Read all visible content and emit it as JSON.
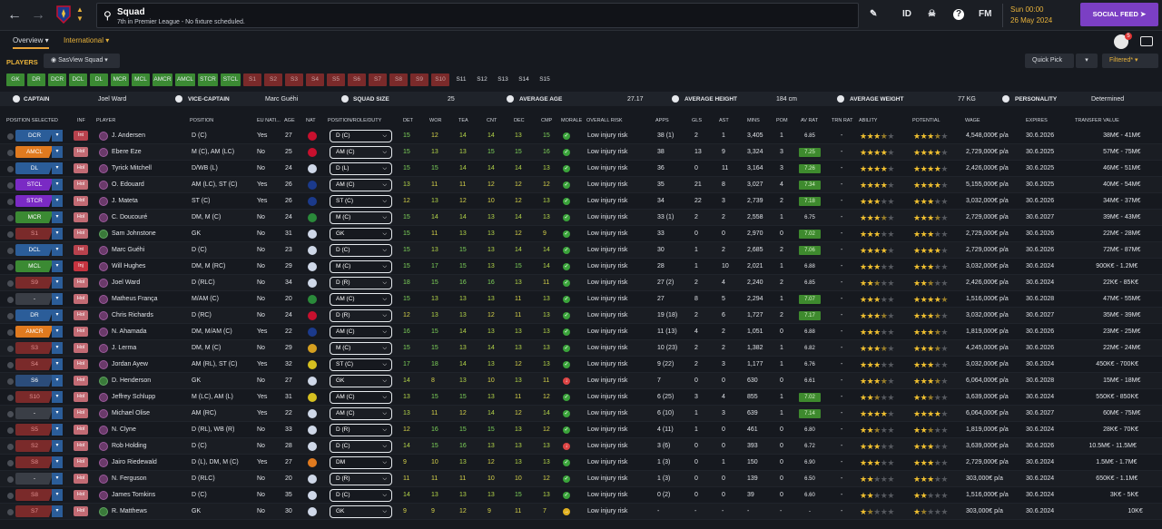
{
  "header": {
    "title": "Squad",
    "subtitle": "7th in Premier League - No fixture scheduled.",
    "id_label": "ID",
    "fm_label": "FM",
    "time": "Sun 00:00",
    "date": "26 May 2024",
    "social_feed": "SOCIAL FEED"
  },
  "tabs": {
    "overview": "Overview",
    "international": "International"
  },
  "notifications": {
    "count": "5"
  },
  "players_bar": {
    "label": "PLAYERS",
    "view": "SasView Squad",
    "quick_pick": "Quick Pick",
    "filtered": "Filtered*"
  },
  "position_filters": [
    "GK",
    "DR",
    "DCR",
    "DCL",
    "DL",
    "MCR",
    "MCL",
    "AMCR",
    "AMCL",
    "STCR",
    "STCL",
    "S1",
    "S2",
    "S3",
    "S4",
    "S5",
    "S6",
    "S7",
    "S8",
    "S9",
    "S10",
    "S11",
    "S12",
    "S13",
    "S14",
    "S15"
  ],
  "position_filter_state": [
    "on",
    "on",
    "on",
    "on",
    "on",
    "on",
    "on",
    "on",
    "on",
    "on",
    "on",
    "sub",
    "sub",
    "sub",
    "sub",
    "sub",
    "sub",
    "sub",
    "sub",
    "sub",
    "sub",
    "off",
    "off",
    "off",
    "off",
    "off"
  ],
  "info": {
    "captain_label": "CAPTAIN",
    "captain": "Joel Ward",
    "vice_label": "VICE-CAPTAIN",
    "vice": "Marc Guéhi",
    "size_label": "SQUAD SIZE",
    "size": "25",
    "age_label": "AVERAGE AGE",
    "age": "27.17",
    "height_label": "AVERAGE HEIGHT",
    "height": "184 cm",
    "weight_label": "AVERAGE WEIGHT",
    "weight": "77 KG",
    "personality_label": "PERSONALITY",
    "personality": "Determined"
  },
  "columns": {
    "pos_sel": "POSITION SELECTED",
    "inf": "INF",
    "player": "PLAYER",
    "position": "POSITION",
    "eu": "EU NATI...",
    "age": "AGE",
    "nat": "NAT",
    "role": "POSITION/ROLE/DUTY",
    "det": "DET",
    "wor": "WOR",
    "tea": "TEA",
    "cnt": "CNT",
    "dec": "DEC",
    "cmp": "CMP",
    "morale": "MORALE",
    "risk": "OVERALL RISK",
    "apps": "APPS",
    "gls": "GLS",
    "ast": "AST",
    "mins": "MINS",
    "pom": "POM",
    "avrat": "AV RAT",
    "trnrat": "TRN RAT",
    "ability": "ABILITY",
    "potential": "POTENTIAL",
    "wage": "WAGE",
    "expires": "EXPIRES",
    "transfer": "TRANSFER VALUE"
  },
  "colors": {
    "accent": "#e8b23a",
    "social": "#7b3fc4",
    "green": "#3b8a33"
  },
  "rows": [
    {
      "sel": "DCR",
      "selc": "#2b5d99",
      "inf": "Int",
      "infc": "int",
      "name": "J. Andersen",
      "pos": "D (C)",
      "eu": "Yes",
      "age": "27",
      "nat": "#c8102e",
      "role": "D (C)",
      "det": "15",
      "wor": "12",
      "tea": "14",
      "cnt": "14",
      "dec": "13",
      "cmp": "15",
      "morale": "good",
      "risk": "Low injury risk",
      "apps": "38 (1)",
      "gls": "2",
      "ast": "1",
      "mins": "3,405",
      "pom": "1",
      "avrat": "6.85",
      "avg": false,
      "trn": "-",
      "ab": 3.5,
      "pot": 3.5,
      "wage": "4,548,000€ p/a",
      "exp": "30.6.2026",
      "tv": "38M€ - 41M€"
    },
    {
      "sel": "AMCL",
      "selc": "#e07a1f",
      "inf": "Hol",
      "infc": "hol",
      "name": "Ebere Eze",
      "pos": "M (C), AM (LC)",
      "eu": "No",
      "age": "25",
      "nat": "#c8102e",
      "role": "AM (C)",
      "det": "15",
      "wor": "13",
      "tea": "13",
      "cnt": "15",
      "dec": "15",
      "cmp": "16",
      "morale": "good",
      "risk": "Low injury risk",
      "apps": "38",
      "gls": "13",
      "ast": "9",
      "mins": "3,324",
      "pom": "3",
      "avrat": "7.25",
      "avg": true,
      "trn": "-",
      "ab": 4,
      "pot": 4,
      "wage": "2,729,000€ p/a",
      "exp": "30.6.2025",
      "tv": "57M€ - 75M€"
    },
    {
      "sel": "DL",
      "selc": "#2b5d99",
      "inf": "Hol",
      "infc": "hol",
      "name": "Tyrick Mitchell",
      "pos": "D/WB (L)",
      "eu": "No",
      "age": "24",
      "nat": "#cfd8e8",
      "role": "D (L)",
      "det": "15",
      "wor": "15",
      "tea": "14",
      "cnt": "14",
      "dec": "14",
      "cmp": "13",
      "morale": "good",
      "risk": "Low injury risk",
      "apps": "36",
      "gls": "0",
      "ast": "11",
      "mins": "3,164",
      "pom": "3",
      "avrat": "7.26",
      "avg": true,
      "trn": "-",
      "ab": 4,
      "pot": 4,
      "wage": "2,426,000€ p/a",
      "exp": "30.6.2025",
      "tv": "46M€ - 51M€"
    },
    {
      "sel": "STCL",
      "selc": "#7a2ac4",
      "inf": "Hol",
      "infc": "hol",
      "name": "O. Edouard",
      "pos": "AM (LC), ST (C)",
      "eu": "Yes",
      "age": "26",
      "nat": "#1b3a8c",
      "role": "AM (C)",
      "det": "13",
      "wor": "11",
      "tea": "11",
      "cnt": "12",
      "dec": "12",
      "cmp": "12",
      "morale": "good",
      "risk": "Low injury risk",
      "apps": "35",
      "gls": "21",
      "ast": "8",
      "mins": "3,027",
      "pom": "4",
      "avrat": "7.34",
      "avg": true,
      "trn": "-",
      "ab": 4,
      "pot": 4,
      "wage": "5,155,000€ p/a",
      "exp": "30.6.2025",
      "tv": "40M€ - 54M€"
    },
    {
      "sel": "STCR",
      "selc": "#7a2ac4",
      "inf": "Hol",
      "infc": "hol",
      "name": "J. Mateta",
      "pos": "ST (C)",
      "eu": "Yes",
      "age": "26",
      "nat": "#1b3a8c",
      "role": "ST (C)",
      "det": "12",
      "wor": "13",
      "tea": "12",
      "cnt": "10",
      "dec": "12",
      "cmp": "13",
      "morale": "good",
      "risk": "Low injury risk",
      "apps": "34",
      "gls": "22",
      "ast": "3",
      "mins": "2,739",
      "pom": "2",
      "avrat": "7.18",
      "avg": true,
      "trn": "-",
      "ab": 3,
      "pot": 3,
      "wage": "3,032,000€ p/a",
      "exp": "30.6.2026",
      "tv": "34M€ - 37M€"
    },
    {
      "sel": "MCR",
      "selc": "#3b8a33",
      "inf": "Hol",
      "infc": "hol",
      "name": "C. Doucouré",
      "pos": "DM, M (C)",
      "eu": "No",
      "age": "24",
      "nat": "#2a8a3a",
      "role": "M (C)",
      "det": "15",
      "wor": "14",
      "tea": "14",
      "cnt": "13",
      "dec": "14",
      "cmp": "13",
      "morale": "good",
      "risk": "Low injury risk",
      "apps": "33 (1)",
      "gls": "2",
      "ast": "2",
      "mins": "2,558",
      "pom": "1",
      "avrat": "6.75",
      "avg": false,
      "trn": "-",
      "ab": 3.5,
      "pot": 3.5,
      "wage": "2,729,000€ p/a",
      "exp": "30.6.2027",
      "tv": "39M€ - 43M€"
    },
    {
      "sel": "S1",
      "selc": "#7a2a2a",
      "inf": "Hol",
      "infc": "hol",
      "name": "Sam Johnstone",
      "pos": "GK",
      "eu": "No",
      "age": "31",
      "nat": "#cfd8e8",
      "role": "GK",
      "det": "15",
      "wor": "11",
      "tea": "13",
      "cnt": "13",
      "dec": "12",
      "cmp": "9",
      "morale": "good",
      "risk": "Low injury risk",
      "apps": "33",
      "gls": "0",
      "ast": "0",
      "mins": "2,970",
      "pom": "0",
      "avrat": "7.02",
      "avg": true,
      "trn": "-",
      "ab": 3,
      "pot": 3,
      "wage": "2,729,000€ p/a",
      "exp": "30.6.2026",
      "tv": "22M€ - 28M€",
      "gk": true
    },
    {
      "sel": "DCL",
      "selc": "#2b5d99",
      "inf": "Int",
      "infc": "int",
      "name": "Marc Guéhi",
      "pos": "D (C)",
      "eu": "No",
      "age": "23",
      "nat": "#cfd8e8",
      "role": "D (C)",
      "det": "15",
      "wor": "13",
      "tea": "15",
      "cnt": "13",
      "dec": "14",
      "cmp": "14",
      "morale": "good",
      "risk": "Low injury risk",
      "apps": "30",
      "gls": "1",
      "ast": "2",
      "mins": "2,685",
      "pom": "2",
      "avrat": "7.06",
      "avg": true,
      "trn": "-",
      "ab": 4,
      "pot": 4,
      "wage": "2,729,000€ p/a",
      "exp": "30.6.2026",
      "tv": "72M€ - 87M€"
    },
    {
      "sel": "MCL",
      "selc": "#3b8a33",
      "inf": "Inj",
      "infc": "inj",
      "name": "Will Hughes",
      "pos": "DM, M (RC)",
      "eu": "No",
      "age": "29",
      "nat": "#cfd8e8",
      "role": "M (C)",
      "det": "15",
      "wor": "17",
      "tea": "15",
      "cnt": "13",
      "dec": "15",
      "cmp": "14",
      "morale": "good",
      "risk": "Low injury risk",
      "apps": "28",
      "gls": "1",
      "ast": "10",
      "mins": "2,021",
      "pom": "1",
      "avrat": "6.88",
      "avg": false,
      "trn": "-",
      "ab": 3,
      "pot": 3,
      "wage": "3,032,000€ p/a",
      "exp": "30.6.2024",
      "tv": "900K€ - 1.2M€"
    },
    {
      "sel": "S9",
      "selc": "#7a2a2a",
      "inf": "Hol",
      "infc": "hol",
      "name": "Joel Ward",
      "pos": "D (RLC)",
      "eu": "No",
      "age": "34",
      "nat": "#cfd8e8",
      "role": "D (R)",
      "det": "18",
      "wor": "15",
      "tea": "16",
      "cnt": "16",
      "dec": "13",
      "cmp": "11",
      "morale": "good",
      "risk": "Low injury risk",
      "apps": "27 (2)",
      "gls": "2",
      "ast": "4",
      "mins": "2,240",
      "pom": "2",
      "avrat": "6.85",
      "avg": false,
      "trn": "-",
      "ab": 2.5,
      "pot": 2.5,
      "wage": "2,426,000€ p/a",
      "exp": "30.6.2024",
      "tv": "22K€ - 85K€"
    },
    {
      "sel": "-",
      "selc": "#3a3e46",
      "inf": "Hol",
      "infc": "hol",
      "name": "Matheus França",
      "pos": "M/AM (C)",
      "eu": "No",
      "age": "20",
      "nat": "#2a8a3a",
      "role": "AM (C)",
      "det": "15",
      "wor": "13",
      "tea": "13",
      "cnt": "13",
      "dec": "11",
      "cmp": "13",
      "morale": "good",
      "risk": "Low injury risk",
      "apps": "27",
      "gls": "8",
      "ast": "5",
      "mins": "2,294",
      "pom": "1",
      "avrat": "7.07",
      "avg": true,
      "trn": "-",
      "ab": 3,
      "pot": 4.5,
      "wage": "1,516,000€ p/a",
      "exp": "30.6.2028",
      "tv": "47M€ - 55M€"
    },
    {
      "sel": "DR",
      "selc": "#2b5d99",
      "inf": "Hol",
      "infc": "hol",
      "name": "Chris Richards",
      "pos": "D (RC)",
      "eu": "No",
      "age": "24",
      "nat": "#c8102e",
      "role": "D (R)",
      "det": "12",
      "wor": "13",
      "tea": "13",
      "cnt": "12",
      "dec": "11",
      "cmp": "13",
      "morale": "good",
      "risk": "Low injury risk",
      "apps": "19 (18)",
      "gls": "2",
      "ast": "6",
      "mins": "1,727",
      "pom": "2",
      "avrat": "7.17",
      "avg": true,
      "trn": "-",
      "ab": 3.5,
      "pot": 3.5,
      "wage": "3,032,000€ p/a",
      "exp": "30.6.2027",
      "tv": "35M€ - 39M€"
    },
    {
      "sel": "AMCR",
      "selc": "#e07a1f",
      "inf": "Hol",
      "infc": "hol",
      "name": "N. Ahamada",
      "pos": "DM, M/AM (C)",
      "eu": "Yes",
      "age": "22",
      "nat": "#1b3a8c",
      "role": "AM (C)",
      "det": "16",
      "wor": "15",
      "tea": "14",
      "cnt": "13",
      "dec": "13",
      "cmp": "13",
      "morale": "good",
      "risk": "Low injury risk",
      "apps": "11 (13)",
      "gls": "4",
      "ast": "2",
      "mins": "1,051",
      "pom": "0",
      "avrat": "6.88",
      "avg": false,
      "trn": "-",
      "ab": 3,
      "pot": 3.5,
      "wage": "1,819,000€ p/a",
      "exp": "30.6.2026",
      "tv": "23M€ - 25M€"
    },
    {
      "sel": "S3",
      "selc": "#7a2a2a",
      "inf": "Hol",
      "infc": "hol",
      "name": "J. Lerma",
      "pos": "DM, M (C)",
      "eu": "No",
      "age": "29",
      "nat": "#d6a020",
      "role": "M (C)",
      "det": "15",
      "wor": "15",
      "tea": "13",
      "cnt": "14",
      "dec": "13",
      "cmp": "13",
      "morale": "good",
      "risk": "Low injury risk",
      "apps": "10 (23)",
      "gls": "2",
      "ast": "2",
      "mins": "1,382",
      "pom": "1",
      "avrat": "6.82",
      "avg": false,
      "trn": "-",
      "ab": 3.5,
      "pot": 3.5,
      "wage": "4,245,000€ p/a",
      "exp": "30.6.2026",
      "tv": "22M€ - 24M€"
    },
    {
      "sel": "S4",
      "selc": "#7a2a2a",
      "inf": "Hol",
      "infc": "hol",
      "name": "Jordan Ayew",
      "pos": "AM (RL), ST (C)",
      "eu": "Yes",
      "age": "32",
      "nat": "#d6c020",
      "role": "ST (C)",
      "det": "17",
      "wor": "18",
      "tea": "14",
      "cnt": "13",
      "dec": "12",
      "cmp": "13",
      "morale": "good",
      "risk": "Low injury risk",
      "apps": "9 (22)",
      "gls": "2",
      "ast": "3",
      "mins": "1,177",
      "pom": "1",
      "avrat": "6.76",
      "avg": false,
      "trn": "-",
      "ab": 3,
      "pot": 3,
      "wage": "3,032,000€ p/a",
      "exp": "30.6.2024",
      "tv": "450K€ - 700K€"
    },
    {
      "sel": "S6",
      "selc": "#2b4c7a",
      "inf": "Hol",
      "infc": "hol",
      "name": "D. Henderson",
      "pos": "GK",
      "eu": "No",
      "age": "27",
      "nat": "#cfd8e8",
      "role": "GK",
      "det": "14",
      "wor": "8",
      "tea": "13",
      "cnt": "10",
      "dec": "13",
      "cmp": "11",
      "morale": "bad",
      "risk": "Low injury risk",
      "apps": "7",
      "gls": "0",
      "ast": "0",
      "mins": "630",
      "pom": "0",
      "avrat": "6.61",
      "avg": false,
      "trn": "-",
      "ab": 3.5,
      "pot": 3.5,
      "wage": "6,064,000€ p/a",
      "exp": "30.6.2028",
      "tv": "15M€ - 18M€",
      "gk": true
    },
    {
      "sel": "S10",
      "selc": "#7a2a2a",
      "inf": "Hol",
      "infc": "hol",
      "name": "Jeffrey Schlupp",
      "pos": "M (LC), AM (L)",
      "eu": "Yes",
      "age": "31",
      "nat": "#d6c020",
      "role": "AM (C)",
      "det": "13",
      "wor": "15",
      "tea": "15",
      "cnt": "13",
      "dec": "11",
      "cmp": "12",
      "morale": "good",
      "risk": "Low injury risk",
      "apps": "6 (25)",
      "gls": "3",
      "ast": "4",
      "mins": "855",
      "pom": "1",
      "avrat": "7.02",
      "avg": true,
      "trn": "-",
      "ab": 2.5,
      "pot": 2.5,
      "wage": "3,639,000€ p/a",
      "exp": "30.6.2024",
      "tv": "550K€ - 850K€"
    },
    {
      "sel": "-",
      "selc": "#3a3e46",
      "inf": "Hol",
      "infc": "hol",
      "name": "Michael Olise",
      "pos": "AM (RC)",
      "eu": "Yes",
      "age": "22",
      "nat": "#cfd8e8",
      "role": "AM (C)",
      "det": "13",
      "wor": "11",
      "tea": "12",
      "cnt": "14",
      "dec": "12",
      "cmp": "14",
      "morale": "good",
      "risk": "Low injury risk",
      "apps": "6 (10)",
      "gls": "1",
      "ast": "3",
      "mins": "639",
      "pom": "1",
      "avrat": "7.14",
      "avg": true,
      "trn": "-",
      "ab": 4,
      "pot": 4,
      "wage": "6,064,000€ p/a",
      "exp": "30.6.2027",
      "tv": "60M€ - 75M€"
    },
    {
      "sel": "S5",
      "selc": "#7a2a2a",
      "inf": "Hol",
      "infc": "hol",
      "name": "N. Clyne",
      "pos": "D (RL), WB (R)",
      "eu": "No",
      "age": "33",
      "nat": "#cfd8e8",
      "role": "D (R)",
      "det": "12",
      "wor": "16",
      "tea": "15",
      "cnt": "15",
      "dec": "13",
      "cmp": "12",
      "morale": "good",
      "risk": "Low injury risk",
      "apps": "4 (11)",
      "gls": "1",
      "ast": "0",
      "mins": "461",
      "pom": "0",
      "avrat": "6.80",
      "avg": false,
      "trn": "-",
      "ab": 2.5,
      "pot": 2.5,
      "wage": "1,819,000€ p/a",
      "exp": "30.6.2024",
      "tv": "28K€ - 70K€"
    },
    {
      "sel": "S2",
      "selc": "#7a2a2a",
      "inf": "Hol",
      "infc": "hol",
      "name": "Rob Holding",
      "pos": "D (C)",
      "eu": "No",
      "age": "28",
      "nat": "#cfd8e8",
      "role": "D (C)",
      "det": "14",
      "wor": "15",
      "tea": "16",
      "cnt": "13",
      "dec": "13",
      "cmp": "13",
      "morale": "bad",
      "risk": "Low injury risk",
      "apps": "3 (6)",
      "gls": "0",
      "ast": "0",
      "mins": "393",
      "pom": "0",
      "avrat": "6.72",
      "avg": false,
      "trn": "-",
      "ab": 3,
      "pot": 3,
      "wage": "3,639,000€ p/a",
      "exp": "30.6.2026",
      "tv": "10.5M€ - 11.5M€"
    },
    {
      "sel": "S8",
      "selc": "#7a2a2a",
      "inf": "Hol",
      "infc": "hol",
      "name": "Jairo Riedewald",
      "pos": "D (L), DM, M (C)",
      "eu": "Yes",
      "age": "27",
      "nat": "#e07a1f",
      "role": "DM",
      "det": "9",
      "wor": "10",
      "tea": "13",
      "cnt": "12",
      "dec": "13",
      "cmp": "13",
      "morale": "good",
      "risk": "Low injury risk",
      "apps": "1 (3)",
      "gls": "0",
      "ast": "1",
      "mins": "150",
      "pom": "0",
      "avrat": "6.90",
      "avg": false,
      "trn": "-",
      "ab": 3,
      "pot": 3,
      "wage": "2,729,000€ p/a",
      "exp": "30.6.2024",
      "tv": "1.5M€ - 1.7M€"
    },
    {
      "sel": "-",
      "selc": "#3a3e46",
      "inf": "Hol",
      "infc": "hol",
      "name": "N. Ferguson",
      "pos": "D (RLC)",
      "eu": "No",
      "age": "20",
      "nat": "#cfd8e8",
      "role": "D (R)",
      "det": "11",
      "wor": "11",
      "tea": "11",
      "cnt": "10",
      "dec": "10",
      "cmp": "12",
      "morale": "good",
      "risk": "Low injury risk",
      "apps": "1 (3)",
      "gls": "0",
      "ast": "0",
      "mins": "139",
      "pom": "0",
      "avrat": "6.50",
      "avg": false,
      "trn": "-",
      "ab": 2,
      "pot": 3,
      "wage": "303,000€ p/a",
      "exp": "30.6.2024",
      "tv": "650K€ - 1.1M€"
    },
    {
      "sel": "S8",
      "selc": "#7a2a2a",
      "inf": "Hol",
      "infc": "hol",
      "name": "James Tomkins",
      "pos": "D (C)",
      "eu": "No",
      "age": "35",
      "nat": "#cfd8e8",
      "role": "D (C)",
      "det": "14",
      "wor": "13",
      "tea": "13",
      "cnt": "13",
      "dec": "15",
      "cmp": "13",
      "morale": "good",
      "risk": "Low injury risk",
      "apps": "0 (2)",
      "gls": "0",
      "ast": "0",
      "mins": "39",
      "pom": "0",
      "avrat": "6.60",
      "avg": false,
      "trn": "-",
      "ab": 2,
      "pot": 2,
      "wage": "1,516,000€ p/a",
      "exp": "30.6.2024",
      "tv": "3K€ - 5K€"
    },
    {
      "sel": "S7",
      "selc": "#7a2a2a",
      "inf": "Hol",
      "infc": "hol",
      "name": "R. Matthews",
      "pos": "GK",
      "eu": "No",
      "age": "30",
      "nat": "#cfd8e8",
      "role": "GK",
      "det": "9",
      "wor": "9",
      "tea": "12",
      "cnt": "9",
      "dec": "11",
      "cmp": "7",
      "morale": "ok",
      "risk": "Low injury risk",
      "apps": "-",
      "gls": "-",
      "ast": "-",
      "mins": "-",
      "pom": "-",
      "avrat": "-",
      "avg": false,
      "trn": "-",
      "ab": 1.5,
      "pot": 1.5,
      "wage": "303,000€ p/a",
      "exp": "30.6.2024",
      "tv": "10K€",
      "gk": true
    }
  ]
}
